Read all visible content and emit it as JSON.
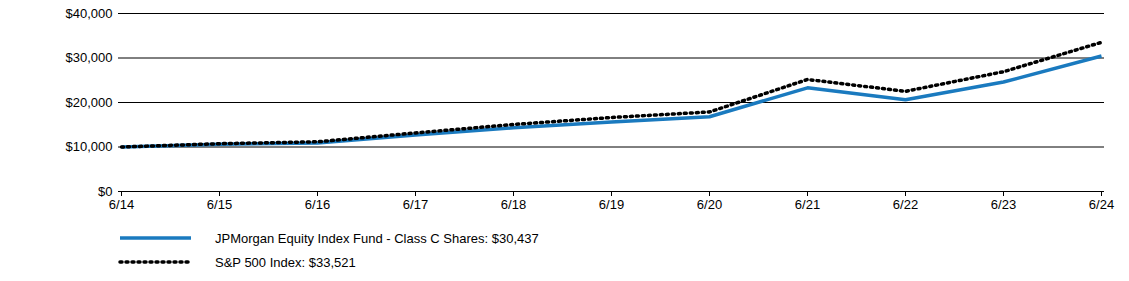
{
  "chart_data": {
    "type": "line",
    "categories": [
      "6/14",
      "6/15",
      "6/16",
      "6/17",
      "6/18",
      "6/19",
      "6/20",
      "6/21",
      "6/22",
      "6/23",
      "6/24"
    ],
    "series": [
      {
        "name": "JPMorgan Equity Index Fund - Class C Shares: $30,437",
        "color": "#1a7abf",
        "line_style": "solid",
        "values": [
          10000,
          10600,
          10900,
          12700,
          14300,
          15600,
          16800,
          23300,
          20600,
          24600,
          30437
        ]
      },
      {
        "name": "S&P 500 Index: $33,521",
        "color": "#000000",
        "line_style": "dotted",
        "values": [
          10000,
          10742,
          11171,
          13170,
          15064,
          16632,
          17880,
          25174,
          22508,
          26917,
          33521
        ]
      }
    ],
    "ylim": [
      0,
      40000
    ],
    "yticks": [
      {
        "value": 0,
        "label": "$0"
      },
      {
        "value": 10000,
        "label": "$10,000"
      },
      {
        "value": 20000,
        "label": "$20,000"
      },
      {
        "value": 30000,
        "label": "$30,000"
      },
      {
        "value": 40000,
        "label": "$40,000"
      }
    ],
    "grid": true,
    "legend": "bottom"
  }
}
